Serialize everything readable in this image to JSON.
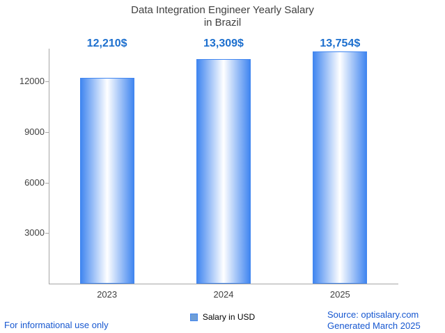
{
  "title": {
    "line1": "Data Integration Engineer Yearly Salary",
    "line2": "in Brazil"
  },
  "chart_data": {
    "type": "bar",
    "title": "Data Integration Engineer Yearly Salary in Brazil",
    "categories": [
      "2023",
      "2024",
      "2025"
    ],
    "values": [
      12210,
      13309,
      13754
    ],
    "value_labels": [
      "12,210$",
      "13,309$",
      "13,754$"
    ],
    "series_name": "Salary in USD",
    "xlabel": "",
    "ylabel": "",
    "ylim": [
      0,
      14000
    ],
    "yticks": [
      3000,
      6000,
      9000,
      12000
    ],
    "grid": false,
    "legend_position": "bottom"
  },
  "legend": {
    "label": "Salary in USD"
  },
  "footer": {
    "left": "For informational use only",
    "source": "Source: optisalary.com",
    "generated": "Generated March 2025"
  },
  "colors": {
    "accent_blue": "#1c6fce",
    "bar_edge": "#4186f0",
    "legend_fill": "#6f9ed6",
    "footer_blue": "#1657d0",
    "axis_gray": "#a6a6a6",
    "text_gray": "#404040"
  }
}
